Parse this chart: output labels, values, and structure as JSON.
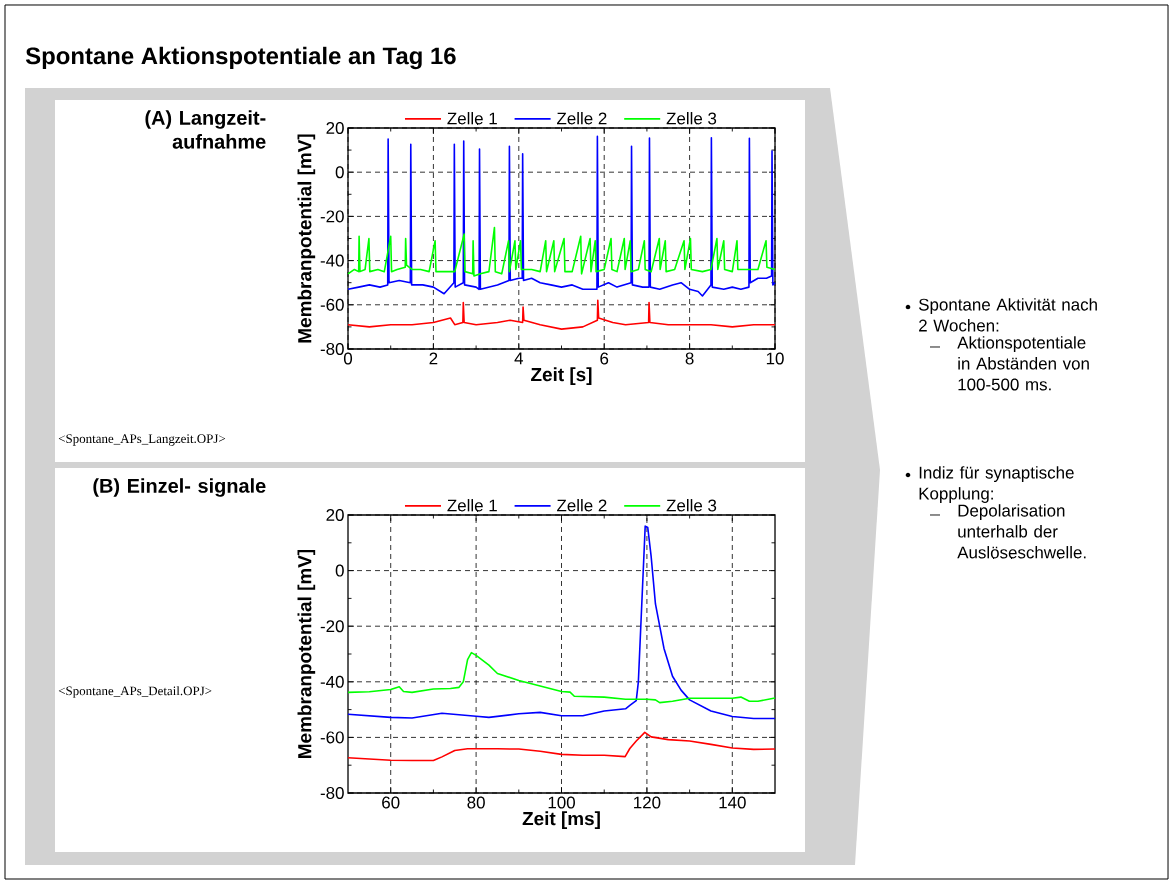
{
  "chart_data": [
    {
      "type": "line",
      "title": "(A) Langzeit- aufnahme",
      "xlabel": "Zeit [s]",
      "ylabel": "Membranpotential [mV]",
      "annotations": [
        "<Spontane_APs_Langzeit.OPJ>"
      ],
      "xlim": [
        0,
        10
      ],
      "ylim": [
        -80,
        20
      ],
      "xticks": [
        0,
        2,
        4,
        6,
        8,
        10
      ],
      "yticks": [
        -80,
        -60,
        -40,
        -20,
        0,
        20
      ],
      "grid": true,
      "legend": "top",
      "series": [
        {
          "name": "Zelle 1",
          "color": "#ff0000",
          "x": [
            0,
            0.5,
            1,
            1.5,
            2,
            2.4,
            2.5,
            2.69,
            2.7,
            2.72,
            3,
            3.5,
            3.8,
            4.09,
            4.1,
            4.12,
            4.5,
            5,
            5.5,
            5.84,
            5.85,
            5.87,
            6.2,
            6.5,
            7.04,
            7.05,
            7.07,
            7.5,
            8,
            8.5,
            9,
            9.5,
            10
          ],
          "values": [
            -69,
            -70,
            -69,
            -69,
            -68,
            -66,
            -69,
            -68,
            -59,
            -68,
            -69,
            -68,
            -67,
            -68,
            -61,
            -67,
            -69,
            -71,
            -70,
            -67,
            -58,
            -66,
            -68,
            -69,
            -68,
            -59,
            -68,
            -69,
            -69,
            -69,
            -70,
            -69,
            -69
          ]
        },
        {
          "name": "Zelle 2",
          "color": "#0000ff",
          "x": [
            0,
            0.25,
            0.5,
            0.75,
            0.93,
            0.94,
            0.96,
            1.2,
            1.46,
            1.47,
            1.49,
            1.75,
            2.0,
            2.25,
            2.48,
            2.49,
            2.51,
            2.7,
            2.71,
            2.73,
            3.0,
            3.07,
            3.08,
            3.1,
            3.3,
            3.5,
            3.77,
            3.78,
            3.8,
            4.0,
            4.08,
            4.09,
            4.11,
            4.3,
            4.5,
            4.75,
            5.0,
            5.25,
            5.5,
            5.83,
            5.84,
            5.86,
            6.1,
            6.3,
            6.63,
            6.64,
            6.66,
            6.9,
            7.05,
            7.06,
            7.08,
            7.3,
            7.6,
            7.8,
            8.0,
            8.2,
            8.3,
            8.5,
            8.51,
            8.53,
            8.8,
            9.0,
            9.2,
            9.39,
            9.4,
            9.42,
            9.6,
            9.8,
            9.92,
            9.93,
            9.95,
            10
          ],
          "values": [
            -53,
            -52,
            -51,
            -52,
            -51,
            15,
            -50,
            -49,
            -50,
            12.6,
            -51,
            -51,
            -52,
            -55,
            -50,
            12.6,
            -52,
            -50,
            14.1,
            -51,
            -52,
            -53,
            10.5,
            -53,
            -52,
            -51,
            -49,
            11.7,
            -49,
            -48,
            -48,
            8.3,
            -49,
            -48,
            -50,
            -51,
            -52,
            -51,
            -53,
            -53,
            16.2,
            -52,
            -50,
            -52,
            -50,
            11.7,
            -51,
            -52,
            -52,
            15.5,
            -52,
            -53,
            -51,
            -50,
            -53,
            -54,
            -56,
            -51,
            15.6,
            -52,
            -53,
            -52,
            -53,
            -52,
            15.3,
            -50,
            -48,
            -48,
            -47,
            9.6,
            -51,
            -50
          ]
        },
        {
          "name": "Zelle 3",
          "color": "#00ff00",
          "x": [
            0,
            0.15,
            0.25,
            0.26,
            0.28,
            0.4,
            0.49,
            0.51,
            0.7,
            0.85,
            1.0,
            1.02,
            1.15,
            1.34,
            1.35,
            1.37,
            1.5,
            1.7,
            1.9,
            2.04,
            2.06,
            2.3,
            2.5,
            2.72,
            2.74,
            2.92,
            2.93,
            2.95,
            3.1,
            3.3,
            3.43,
            3.45,
            3.6,
            3.76,
            3.78,
            3.91,
            3.93,
            4.04,
            4.06,
            4.3,
            4.5,
            4.63,
            4.65,
            4.82,
            4.84,
            5.06,
            5.08,
            5.25,
            5.45,
            5.47,
            5.67,
            5.69,
            5.79,
            5.81,
            6.0,
            6.16,
            6.18,
            6.3,
            6.47,
            6.49,
            6.61,
            6.63,
            6.8,
            6.94,
            6.96,
            7.1,
            7.29,
            7.31,
            7.43,
            7.45,
            7.65,
            7.87,
            7.89,
            8.02,
            8.04,
            8.3,
            8.5,
            8.64,
            8.66,
            8.8,
            8.82,
            9.0,
            9.11,
            9.13,
            9.4,
            9.6,
            9.79,
            9.81,
            10
          ],
          "values": [
            -46,
            -44,
            -45,
            -29,
            -45,
            -44,
            -30,
            -45,
            -44,
            -45,
            -29,
            -45,
            -44,
            -43,
            -30,
            -42,
            -44,
            -44,
            -45,
            -31,
            -45,
            -45,
            -45,
            -28,
            -45,
            -46,
            -31,
            -47,
            -46,
            -45,
            -25,
            -45,
            -46,
            -31,
            -45,
            -31,
            -44,
            -31,
            -44,
            -44,
            -45,
            -31,
            -45,
            -31,
            -45,
            -30,
            -45,
            -45,
            -29,
            -46,
            -30,
            -45,
            -31,
            -45,
            -44,
            -30,
            -44,
            -45,
            -30,
            -44,
            -31,
            -45,
            -44,
            -31,
            -44,
            -45,
            -30,
            -44,
            -31,
            -45,
            -44,
            -31,
            -44,
            -30,
            -44,
            -45,
            -44,
            -30,
            -44,
            -31,
            -44,
            -45,
            -31,
            -44,
            -44,
            -44,
            -31,
            -43,
            -44
          ]
        }
      ]
    },
    {
      "type": "line",
      "title": "(B) Einzel- signale",
      "xlabel": "Zeit [ms]",
      "ylabel": "Membranpotential [mV]",
      "annotations": [
        "<Spontane_APs_Detail.OPJ>"
      ],
      "xlim": [
        50,
        150
      ],
      "ylim": [
        -80,
        20
      ],
      "xticks": [
        60,
        80,
        100,
        120,
        140
      ],
      "yticks": [
        -80,
        -60,
        -40,
        -20,
        0,
        20
      ],
      "grid": true,
      "legend": "top",
      "series": [
        {
          "name": "Zelle 1",
          "color": "#ff0000",
          "x": [
            50,
            60,
            65,
            70,
            72,
            75,
            78,
            85,
            90,
            95,
            100,
            105,
            110,
            114.9,
            116,
            117.5,
            119.5,
            121,
            125,
            130,
            135,
            140,
            145,
            150
          ],
          "values": [
            -67.3,
            -68.2,
            -68.3,
            -68.3,
            -67,
            -64.7,
            -64.1,
            -64.1,
            -64.2,
            -65,
            -66.1,
            -66.4,
            -66.4,
            -66.9,
            -64,
            -61.3,
            -58.2,
            -59.8,
            -60.8,
            -61.3,
            -62.5,
            -63.8,
            -64.3,
            -64.2
          ]
        },
        {
          "name": "Zelle 2",
          "color": "#0000ff",
          "x": [
            50,
            60,
            65,
            72,
            80,
            83,
            90,
            95,
            100,
            105,
            110,
            115,
            116,
            117.5,
            118,
            119,
            119.6,
            120.2,
            121,
            122,
            124,
            126,
            128,
            130,
            135,
            140,
            145,
            150
          ],
          "values": [
            -51.7,
            -52.8,
            -53,
            -51.3,
            -52.4,
            -52.8,
            -51.5,
            -51,
            -52.2,
            -52.2,
            -50.5,
            -49.7,
            -48.5,
            -46.8,
            -40,
            -5,
            16,
            15.5,
            5,
            -12,
            -28,
            -38,
            -43,
            -46.5,
            -50.5,
            -52.5,
            -53.2,
            -53.2
          ]
        },
        {
          "name": "Zelle 3",
          "color": "#00ff00",
          "x": [
            50,
            55,
            60,
            62,
            63,
            65,
            70,
            74,
            76,
            77,
            78,
            78.9,
            80,
            83,
            85,
            90,
            95,
            100,
            102,
            103,
            110,
            115,
            120,
            122,
            123,
            126,
            130,
            140,
            142,
            144,
            146,
            150
          ],
          "values": [
            -43.8,
            -43.6,
            -42.8,
            -41.8,
            -43.5,
            -43.8,
            -42.6,
            -42.4,
            -42,
            -40,
            -32,
            -29.5,
            -30.5,
            -34,
            -37,
            -39.5,
            -41.5,
            -43.5,
            -43.7,
            -45.2,
            -45.5,
            -46.3,
            -46.3,
            -46.5,
            -47.5,
            -47,
            -45.9,
            -45.9,
            -45.5,
            -47,
            -47,
            -45.8
          ]
        }
      ]
    },
    {
      "type": "other",
      "title": "Spontane Aktionspotentiale an Tag 16",
      "annotations": [
        "Spontane Aktivität nach 2 Wochen:",
        "Aktionspotentiale in Abständen von 100-500 ms.",
        "Indiz für synaptische Kopplung:",
        "Depolarisation unterhalb der Auslöseschwelle."
      ]
    }
  ]
}
